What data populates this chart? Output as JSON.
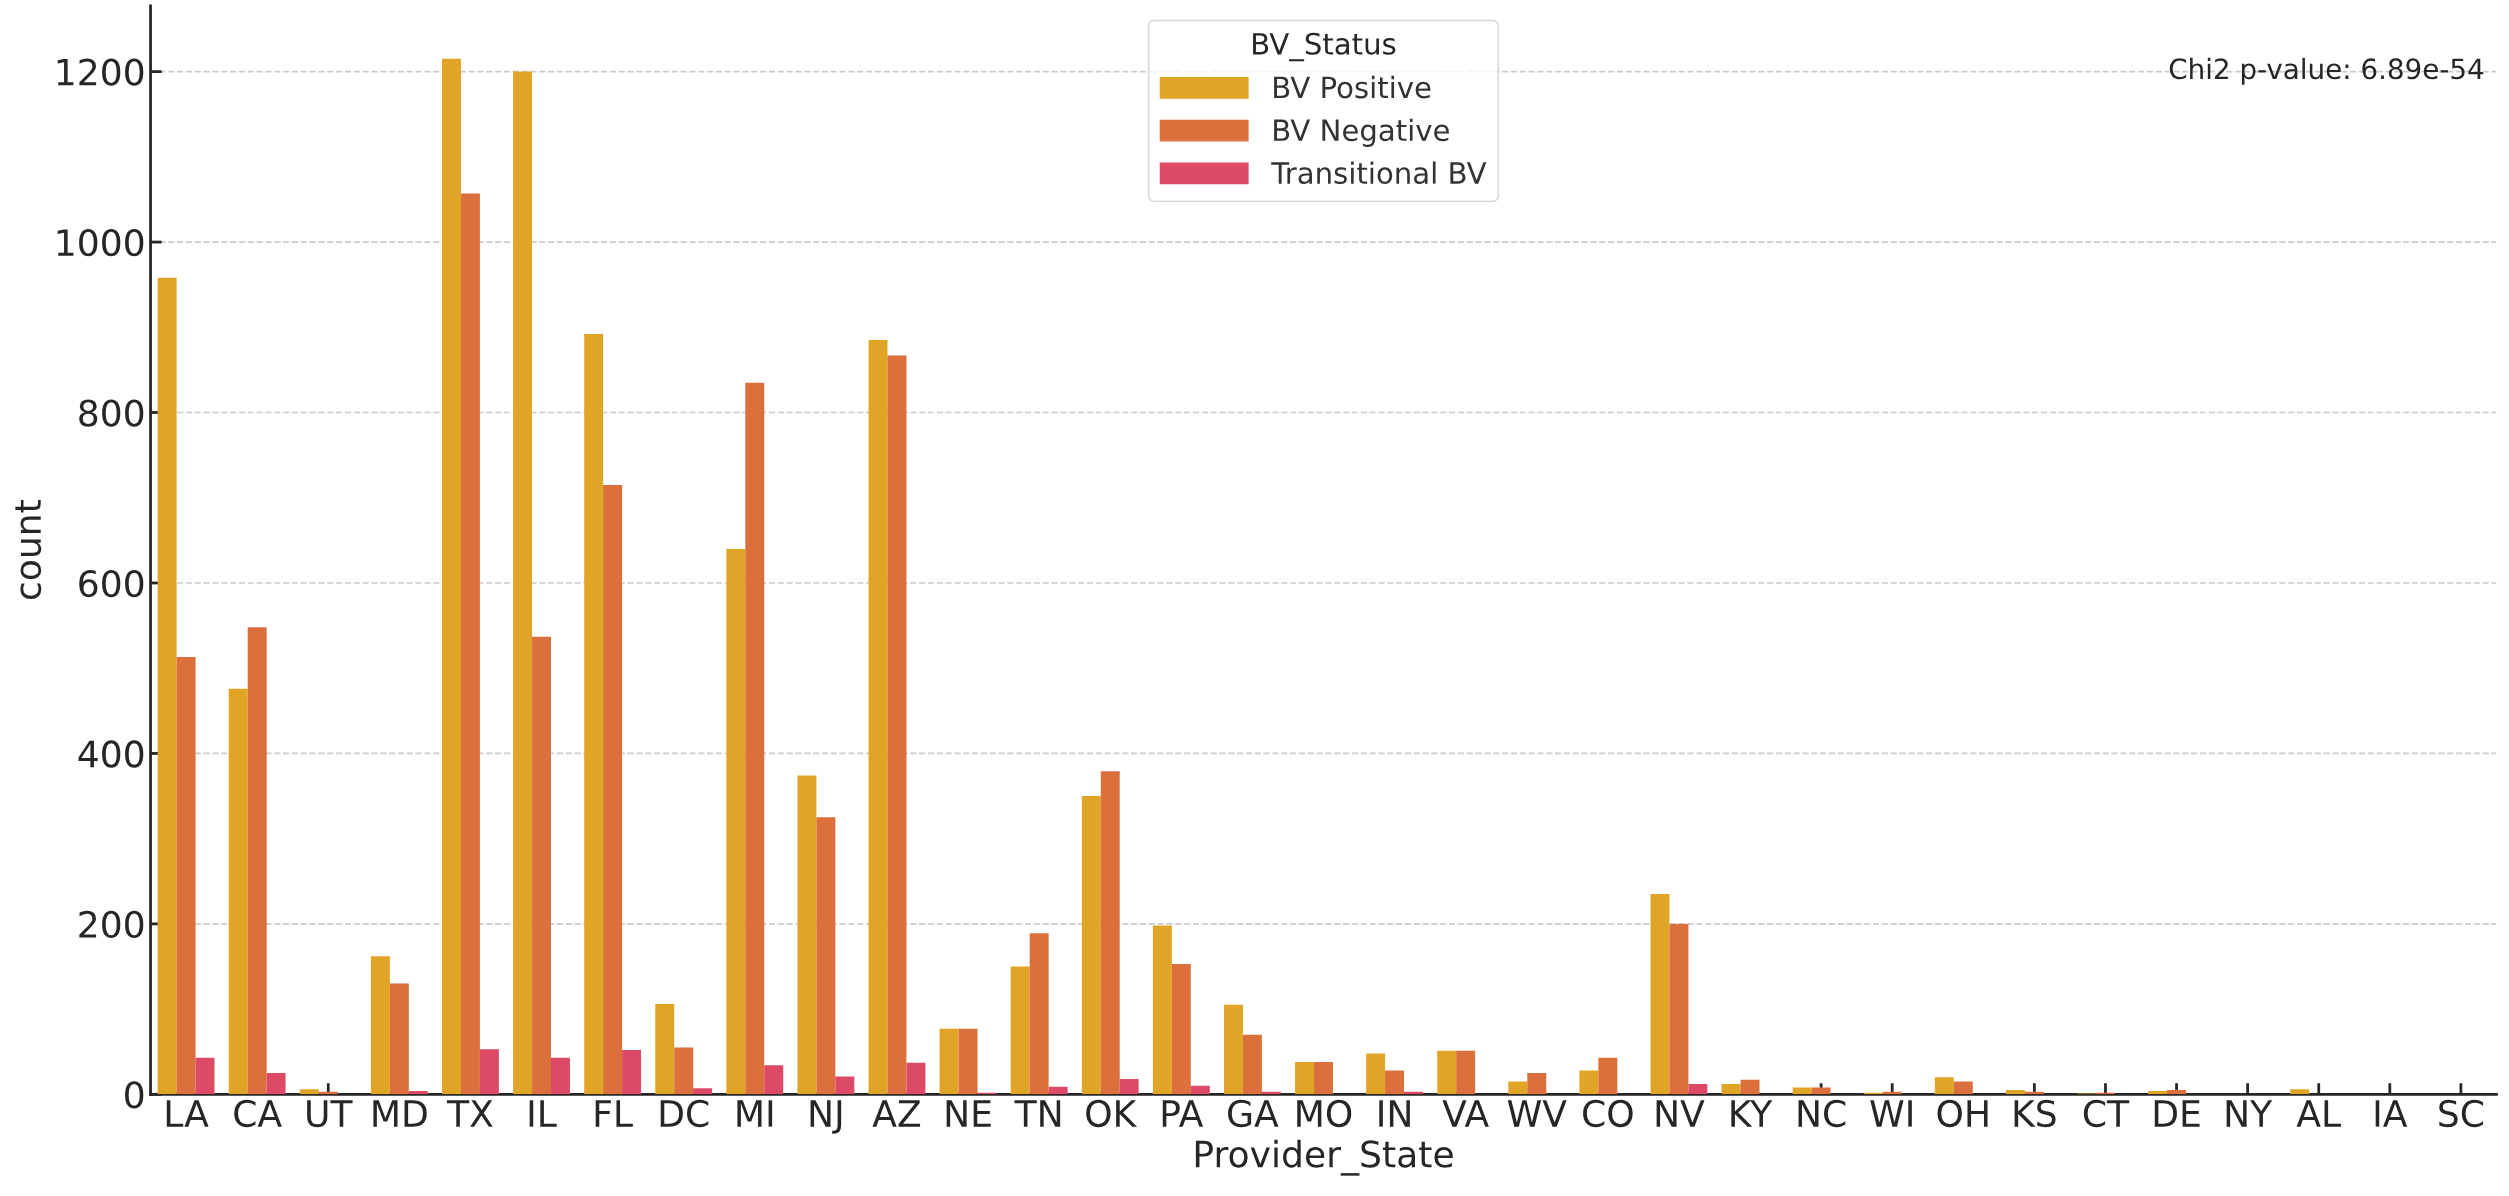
{
  "chart_data": {
    "type": "bar",
    "xlabel": "Provider_State",
    "ylabel": "count",
    "legend_title": "BV_Status",
    "legend": "top",
    "grid": "y",
    "categories": [
      "LA",
      "CA",
      "UT",
      "MD",
      "TX",
      "IL",
      "FL",
      "DC",
      "MI",
      "NJ",
      "AZ",
      "NE",
      "TN",
      "OK",
      "PA",
      "GA",
      "MO",
      "IN",
      "VA",
      "WV",
      "CO",
      "NV",
      "KY",
      "NC",
      "WI",
      "OH",
      "KS",
      "CT",
      "DE",
      "NY",
      "AL",
      "IA",
      "SC"
    ],
    "series": [
      {
        "name": "BV Positive",
        "color": "#e0a526",
        "values": [
          958,
          476,
          6,
          162,
          1215,
          1200,
          892,
          106,
          640,
          374,
          885,
          77,
          150,
          350,
          198,
          105,
          38,
          48,
          51,
          15,
          28,
          235,
          12,
          8,
          2,
          20,
          5,
          1,
          4,
          0,
          6,
          0,
          0
        ]
      },
      {
        "name": "BV Negative",
        "color": "#db703c",
        "values": [
          513,
          548,
          3,
          130,
          1057,
          537,
          715,
          55,
          835,
          325,
          867,
          77,
          189,
          379,
          153,
          70,
          38,
          28,
          51,
          25,
          43,
          200,
          17,
          8,
          3,
          15,
          3,
          2,
          5,
          0,
          0,
          0,
          0
        ]
      },
      {
        "name": "Transitional BV",
        "color": "#dd4a66",
        "values": [
          43,
          25,
          0,
          4,
          53,
          43,
          52,
          7,
          34,
          21,
          37,
          2,
          9,
          18,
          10,
          3,
          0,
          3,
          0,
          0,
          0,
          12,
          0,
          0,
          0,
          0,
          0,
          0,
          0,
          0,
          0,
          0,
          0
        ]
      }
    ],
    "ylim": [
      0,
      1277
    ],
    "yticks": [
      0,
      200,
      400,
      600,
      800,
      1000,
      1200
    ],
    "annotations": [
      "Chi2 p-value: 6.89e-54"
    ]
  }
}
